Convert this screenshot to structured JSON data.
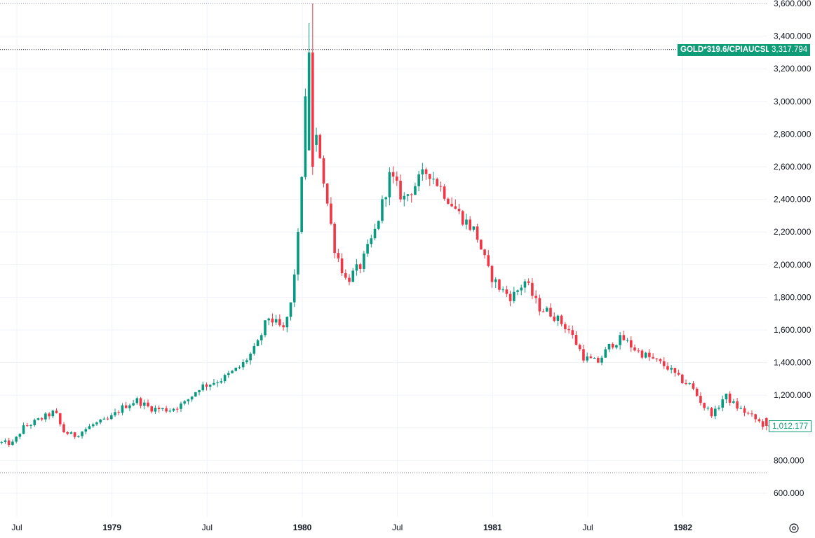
{
  "chart_data": {
    "type": "candlestick",
    "symbol": "GOLD*319.6/CPIAUCSL",
    "y_ticks": [
      "600.000",
      "800.000",
      "1,000.000",
      "1,200.000",
      "1,400.000",
      "1,600.000",
      "1,800.000",
      "2,000.000",
      "2,200.000",
      "2,400.000",
      "2,600.000",
      "2,800.000",
      "3,000.000",
      "3,200.000",
      "3,400.000",
      "3,600.000"
    ],
    "ylim": [
      560,
      3620
    ],
    "x_ticks": [
      {
        "label": "Jul",
        "x": 1978.5,
        "year": false
      },
      {
        "label": "1979",
        "x": 1979.0,
        "year": true
      },
      {
        "label": "Jul",
        "x": 1979.5,
        "year": false
      },
      {
        "label": "1980",
        "x": 1980.0,
        "year": true
      },
      {
        "label": "Jul",
        "x": 1980.5,
        "year": false
      },
      {
        "label": "1981",
        "x": 1981.0,
        "year": true
      },
      {
        "label": "Jul",
        "x": 1981.5,
        "year": false
      },
      {
        "label": "1982",
        "x": 1982.0,
        "year": true
      }
    ],
    "xlim": [
      1978.42,
      1982.5
    ],
    "high_value": 3600,
    "low_value": 725,
    "current_label": "3,317.794",
    "current_value": 3317.794,
    "last_label": "1,012.177",
    "last_value": 1012.177,
    "up_color": "#089981",
    "down_color": "#f23645",
    "series_anchors": [
      [
        1978.42,
        910
      ],
      [
        1978.5,
        905
      ],
      [
        1978.55,
        1000
      ],
      [
        1978.62,
        1040
      ],
      [
        1978.72,
        1100
      ],
      [
        1978.76,
        980
      ],
      [
        1978.82,
        950
      ],
      [
        1978.92,
        1020
      ],
      [
        1979.0,
        1050
      ],
      [
        1979.08,
        1130
      ],
      [
        1979.15,
        1170
      ],
      [
        1979.22,
        1120
      ],
      [
        1979.32,
        1110
      ],
      [
        1979.4,
        1150
      ],
      [
        1979.48,
        1250
      ],
      [
        1979.6,
        1300
      ],
      [
        1979.7,
        1380
      ],
      [
        1979.78,
        1500
      ],
      [
        1979.84,
        1680
      ],
      [
        1979.92,
        1600
      ],
      [
        1979.96,
        1760
      ],
      [
        1980.0,
        2200
      ],
      [
        1980.02,
        2650
      ],
      [
        1980.045,
        3200
      ],
      [
        1980.06,
        2680
      ],
      [
        1980.1,
        2780
      ],
      [
        1980.14,
        2450
      ],
      [
        1980.19,
        2100
      ],
      [
        1980.25,
        1900
      ],
      [
        1980.33,
        2000
      ],
      [
        1980.4,
        2200
      ],
      [
        1980.48,
        2550
      ],
      [
        1980.55,
        2400
      ],
      [
        1980.62,
        2500
      ],
      [
        1980.68,
        2580
      ],
      [
        1980.76,
        2450
      ],
      [
        1980.85,
        2300
      ],
      [
        1980.93,
        2200
      ],
      [
        1981.0,
        1950
      ],
      [
        1981.06,
        1850
      ],
      [
        1981.12,
        1800
      ],
      [
        1981.19,
        1900
      ],
      [
        1981.26,
        1740
      ],
      [
        1981.33,
        1700
      ],
      [
        1981.42,
        1600
      ],
      [
        1981.5,
        1430
      ],
      [
        1981.57,
        1400
      ],
      [
        1981.64,
        1510
      ],
      [
        1981.7,
        1550
      ],
      [
        1981.78,
        1470
      ],
      [
        1981.86,
        1420
      ],
      [
        1981.94,
        1370
      ],
      [
        1982.0,
        1300
      ],
      [
        1982.06,
        1260
      ],
      [
        1982.13,
        1130
      ],
      [
        1982.18,
        1080
      ],
      [
        1982.24,
        1200
      ],
      [
        1982.3,
        1130
      ],
      [
        1982.38,
        1070
      ],
      [
        1982.45,
        1010
      ]
    ]
  }
}
